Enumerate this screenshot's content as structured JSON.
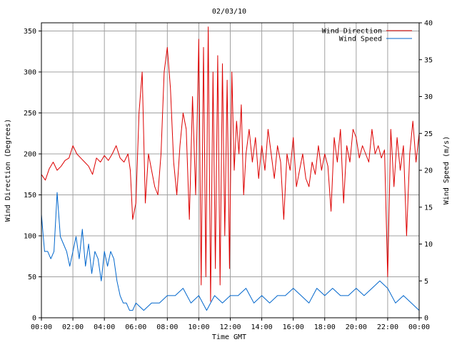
{
  "chart_data": {
    "type": "line",
    "title": "02/03/10",
    "xlabel": "Time GMT",
    "ylabel_left": "Wind Direction (Degrees)",
    "ylabel_right": "Wind Speed (m/s)",
    "x_unit": "hours GMT",
    "xlim": [
      0,
      24
    ],
    "ylim_left": [
      0,
      360
    ],
    "ylim_right": [
      0,
      40
    ],
    "x_tick_values": [
      0,
      2,
      4,
      6,
      8,
      10,
      12,
      14,
      16,
      18,
      20,
      22,
      24
    ],
    "x_tick_labels": [
      "00:00",
      "02:00",
      "04:00",
      "06:00",
      "08:00",
      "10:00",
      "12:00",
      "14:00",
      "16:00",
      "18:00",
      "20:00",
      "22:00",
      "00:00"
    ],
    "y_left_ticks": [
      0,
      50,
      100,
      150,
      200,
      250,
      300,
      350
    ],
    "y_right_ticks": [
      0,
      5,
      10,
      15,
      20,
      25,
      30,
      35,
      40
    ],
    "grid": true,
    "legend_position": "top-right",
    "series": [
      {
        "name": "Wind Direction",
        "axis": "left",
        "color": "#dd0000",
        "x": [
          0.0,
          0.25,
          0.5,
          0.75,
          1.0,
          1.25,
          1.5,
          1.75,
          2.0,
          2.25,
          2.5,
          2.75,
          3.0,
          3.25,
          3.5,
          3.75,
          4.0,
          4.25,
          4.5,
          4.75,
          5.0,
          5.25,
          5.5,
          5.65,
          5.8,
          6.0,
          6.2,
          6.4,
          6.6,
          6.8,
          7.0,
          7.2,
          7.4,
          7.6,
          7.8,
          8.0,
          8.2,
          8.4,
          8.6,
          8.8,
          9.0,
          9.2,
          9.4,
          9.6,
          9.8,
          10.0,
          10.15,
          10.3,
          10.45,
          10.6,
          10.75,
          10.9,
          11.05,
          11.2,
          11.35,
          11.5,
          11.65,
          11.8,
          11.95,
          12.1,
          12.25,
          12.4,
          12.55,
          12.7,
          12.85,
          13.0,
          13.2,
          13.4,
          13.6,
          13.8,
          14.0,
          14.2,
          14.4,
          14.6,
          14.8,
          15.0,
          15.2,
          15.4,
          15.6,
          15.8,
          16.0,
          16.2,
          16.4,
          16.6,
          16.8,
          17.0,
          17.2,
          17.4,
          17.6,
          17.8,
          18.0,
          18.2,
          18.4,
          18.6,
          18.8,
          19.0,
          19.2,
          19.4,
          19.6,
          19.8,
          20.0,
          20.2,
          20.4,
          20.6,
          20.8,
          21.0,
          21.2,
          21.4,
          21.6,
          21.8,
          22.0,
          22.2,
          22.4,
          22.6,
          22.8,
          23.0,
          23.2,
          23.4,
          23.6,
          23.8,
          24.0
        ],
        "y": [
          175,
          168,
          182,
          190,
          180,
          185,
          192,
          195,
          210,
          200,
          195,
          190,
          185,
          175,
          195,
          190,
          198,
          192,
          200,
          210,
          195,
          190,
          200,
          180,
          120,
          140,
          250,
          300,
          140,
          200,
          180,
          160,
          150,
          200,
          300,
          330,
          280,
          190,
          150,
          210,
          250,
          230,
          120,
          270,
          150,
          340,
          40,
          330,
          50,
          355,
          20,
          300,
          60,
          320,
          40,
          310,
          100,
          290,
          60,
          300,
          180,
          240,
          200,
          260,
          150,
          200,
          230,
          190,
          220,
          170,
          210,
          180,
          230,
          200,
          170,
          210,
          190,
          120,
          200,
          180,
          220,
          160,
          180,
          200,
          170,
          160,
          190,
          175,
          210,
          180,
          200,
          185,
          130,
          220,
          190,
          230,
          140,
          210,
          190,
          230,
          220,
          195,
          210,
          200,
          190,
          230,
          200,
          210,
          195,
          205,
          50,
          230,
          160,
          220,
          180,
          210,
          100,
          200,
          240,
          190,
          225
        ]
      },
      {
        "name": "Wind Speed",
        "axis": "right",
        "color": "#0066cc",
        "x": [
          0.0,
          0.2,
          0.4,
          0.6,
          0.8,
          1.0,
          1.2,
          1.4,
          1.6,
          1.8,
          2.0,
          2.2,
          2.4,
          2.6,
          2.8,
          3.0,
          3.2,
          3.4,
          3.6,
          3.8,
          4.0,
          4.2,
          4.4,
          4.6,
          4.8,
          5.0,
          5.2,
          5.4,
          5.6,
          5.8,
          6.0,
          6.5,
          7.0,
          7.5,
          8.0,
          8.5,
          9.0,
          9.5,
          10.0,
          10.5,
          11.0,
          11.5,
          12.0,
          12.5,
          13.0,
          13.5,
          14.0,
          14.5,
          15.0,
          15.5,
          16.0,
          16.5,
          17.0,
          17.5,
          18.0,
          18.5,
          19.0,
          19.5,
          20.0,
          20.5,
          21.0,
          21.5,
          22.0,
          22.5,
          23.0,
          23.5,
          24.0
        ],
        "y": [
          14,
          9,
          9,
          8,
          9,
          17,
          11,
          10,
          9,
          7,
          9,
          11,
          8,
          12,
          7,
          10,
          6,
          9,
          8,
          5,
          9,
          7,
          9,
          8,
          5,
          3,
          2,
          2,
          1,
          1,
          2,
          1,
          2,
          2,
          3,
          3,
          4,
          2,
          3,
          1,
          3,
          2,
          3,
          3,
          4,
          2,
          3,
          2,
          3,
          3,
          4,
          3,
          2,
          4,
          3,
          4,
          3,
          3,
          4,
          3,
          4,
          5,
          4,
          2,
          3,
          2,
          1
        ]
      }
    ]
  }
}
